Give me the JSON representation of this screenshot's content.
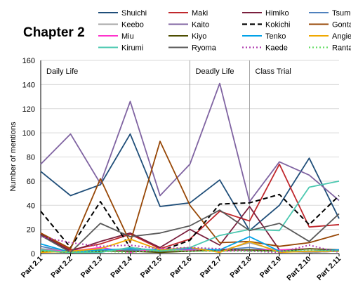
{
  "chart_data": {
    "type": "line",
    "title": "Chapter 2",
    "xlabel": "",
    "ylabel": "Number of mentions",
    "ylim": [
      0,
      160
    ],
    "yticks": [
      0,
      20,
      40,
      60,
      80,
      100,
      120,
      140,
      160
    ],
    "grid": true,
    "legend_position": "top",
    "categories": [
      "Part 2.1",
      "Part 2.2",
      "Part 2.3",
      "Part 2.4",
      "Part 2.5",
      "Part 2.6",
      "Part 2.7",
      "Part 2.8",
      "Part 2.9",
      "Part 2.10",
      "Part 2.11"
    ],
    "sections": [
      {
        "label": "Daily Life",
        "start_index": 0
      },
      {
        "label": "Deadly Life",
        "start_index": 5
      },
      {
        "label": "Class Trial",
        "start_index": 7
      }
    ],
    "series": [
      {
        "name": "Shuichi",
        "color": "#1f4e79",
        "dash": "solid",
        "values": [
          68,
          48,
          57,
          99,
          39,
          42,
          61,
          19,
          40,
          79,
          29
        ]
      },
      {
        "name": "Maki",
        "color": "#c0282d",
        "dash": "solid",
        "values": [
          17,
          3,
          8,
          16,
          4,
          12,
          35,
          27,
          74,
          22,
          24
        ]
      },
      {
        "name": "Himiko",
        "color": "#7a1f3d",
        "dash": "solid",
        "values": [
          16,
          2,
          10,
          17,
          5,
          20,
          7,
          39,
          3,
          1,
          2
        ]
      },
      {
        "name": "Tsumugi",
        "color": "#4f81bd",
        "dash": "solid",
        "values": [
          6,
          1,
          3,
          3,
          2,
          2,
          3,
          5,
          2,
          2,
          3
        ]
      },
      {
        "name": "Keebo",
        "color": "#a6a6a6",
        "dash": "solid",
        "values": [
          4,
          2,
          2,
          4,
          2,
          3,
          2,
          9,
          2,
          1,
          2
        ]
      },
      {
        "name": "Kaito",
        "color": "#8064a2",
        "dash": "solid",
        "values": [
          74,
          99,
          58,
          126,
          48,
          74,
          141,
          43,
          76,
          65,
          44
        ]
      },
      {
        "name": "Kokichi",
        "color": "#000000",
        "dash": "dashed",
        "values": [
          35,
          5,
          43,
          5,
          2,
          11,
          41,
          42,
          49,
          24,
          48
        ]
      },
      {
        "name": "Gonta",
        "color": "#974706",
        "dash": "solid",
        "values": [
          17,
          4,
          62,
          9,
          93,
          40,
          9,
          10,
          6,
          9,
          16
        ]
      },
      {
        "name": "Miu",
        "color": "#ff33cc",
        "dash": "solid",
        "values": [
          3,
          2,
          5,
          1,
          4,
          3,
          2,
          3,
          3,
          4,
          3
        ]
      },
      {
        "name": "Kiyo",
        "color": "#4d4d00",
        "dash": "solid",
        "values": [
          2,
          1,
          2,
          2,
          1,
          2,
          3,
          3,
          2,
          4,
          3
        ]
      },
      {
        "name": "Tenko",
        "color": "#00a2e8",
        "dash": "solid",
        "values": [
          8,
          1,
          3,
          4,
          3,
          4,
          3,
          14,
          2,
          2,
          3
        ]
      },
      {
        "name": "Angie",
        "color": "#f0a800",
        "dash": "solid",
        "values": [
          1,
          2,
          4,
          12,
          3,
          5,
          1,
          10,
          1,
          2,
          2
        ]
      },
      {
        "name": "Kirumi",
        "color": "#4bc8b0",
        "dash": "solid",
        "values": [
          3,
          1,
          1,
          5,
          2,
          5,
          15,
          20,
          19,
          55,
          60
        ]
      },
      {
        "name": "Ryoma",
        "color": "#595959",
        "dash": "solid",
        "values": [
          15,
          1,
          25,
          14,
          17,
          23,
          36,
          19,
          25,
          10,
          33
        ]
      },
      {
        "name": "Kaede",
        "color": "#b040b0",
        "dash": "dotted",
        "values": [
          14,
          9,
          6,
          7,
          4,
          5,
          4,
          2,
          1,
          7,
          1
        ]
      },
      {
        "name": "Rantaro",
        "color": "#66dd66",
        "dash": "dotted",
        "values": [
          2,
          1,
          2,
          1,
          3,
          2,
          2,
          2,
          2,
          3,
          2
        ]
      }
    ]
  }
}
